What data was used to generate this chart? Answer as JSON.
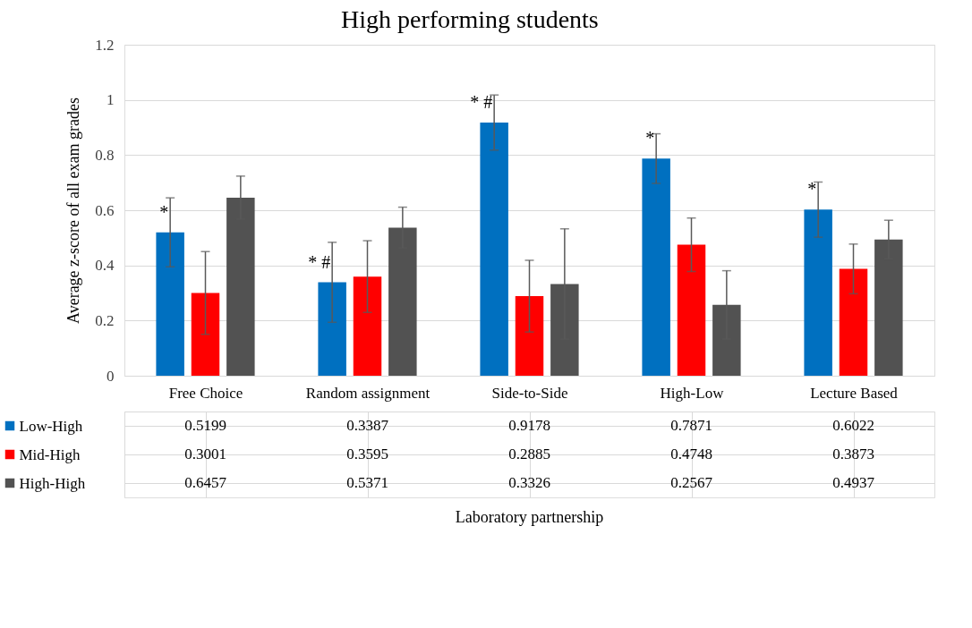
{
  "chart_data": {
    "type": "bar",
    "title": "High performing students",
    "ylabel": "Average z-score of all exam grades",
    "categories": [
      "Free Choice",
      "Random assignment",
      "Side-to-Side",
      "High-Low",
      "Lecture Based"
    ],
    "series": [
      {
        "name": "Low-High",
        "color": "#0070c0",
        "values": [
          0.5199,
          0.3387,
          0.9178,
          0.7871,
          0.6022
        ],
        "errors": [
          0.125,
          0.145,
          0.1,
          0.09,
          0.1
        ]
      },
      {
        "name": "Mid-High",
        "color": "#ff0000",
        "values": [
          0.3001,
          0.3595,
          0.2885,
          0.4748,
          0.3873
        ],
        "errors": [
          0.15,
          0.13,
          0.13,
          0.097,
          0.09
        ]
      },
      {
        "name": "High-High",
        "color": "#525252",
        "values": [
          0.6457,
          0.5371,
          0.3326,
          0.2567,
          0.4937
        ],
        "errors": [
          0.078,
          0.074,
          0.2,
          0.124,
          0.07
        ]
      }
    ],
    "ylim": [
      0,
      1.2
    ],
    "yticks": [
      0,
      0.2,
      0.4,
      0.6,
      0.8,
      1,
      1.2
    ],
    "grid": "y",
    "legend": "bottom",
    "data_labels": true,
    "annotations": [
      "*",
      "* #",
      "* #",
      "*",
      "*",
      "Laboratory partnership"
    ]
  }
}
